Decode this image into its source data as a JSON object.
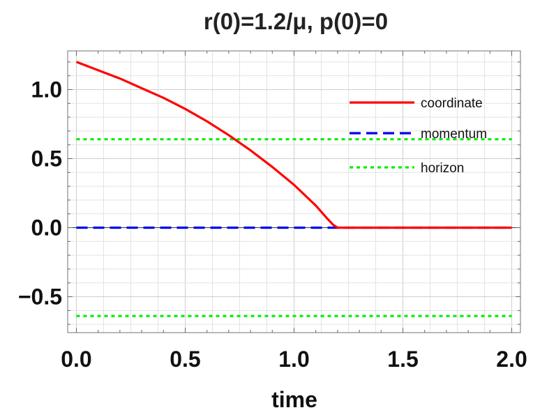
{
  "chart_data": {
    "type": "line",
    "title": "r(0)=1.2/μ, p(0)=0",
    "xlabel": "time",
    "ylabel": "",
    "xlim": [
      -0.04,
      2.04
    ],
    "ylim": [
      -0.76,
      1.28
    ],
    "grid": true,
    "legend_position": "top-right",
    "x_ticks": [
      {
        "value": 0.0,
        "label": "0.0"
      },
      {
        "value": 0.5,
        "label": "0.5"
      },
      {
        "value": 1.0,
        "label": "1.0"
      },
      {
        "value": 1.5,
        "label": "1.5"
      },
      {
        "value": 2.0,
        "label": "2.0"
      }
    ],
    "y_ticks": [
      {
        "value": 1.0,
        "label": "1.0"
      },
      {
        "value": 0.5,
        "label": "0.5"
      },
      {
        "value": 0.0,
        "label": "0.0"
      },
      {
        "value": -0.5,
        "label": "−0.5"
      }
    ],
    "series": [
      {
        "name": "coordinate",
        "color": "#ff0000",
        "dash": "solid",
        "x": [
          0.0,
          0.1,
          0.2,
          0.3,
          0.4,
          0.5,
          0.6,
          0.7,
          0.8,
          0.9,
          1.0,
          1.1,
          1.15,
          1.18,
          1.2,
          1.3,
          1.5,
          1.7,
          2.0
        ],
        "y": [
          1.2,
          1.14,
          1.08,
          1.01,
          0.94,
          0.86,
          0.77,
          0.67,
          0.56,
          0.44,
          0.31,
          0.16,
          0.07,
          0.02,
          0.0,
          0.0,
          0.0,
          0.0,
          0.0
        ]
      },
      {
        "name": "momentum",
        "color": "#0000ee",
        "dash": "dashed",
        "x": [
          0.0,
          2.0
        ],
        "y": [
          0.0,
          0.0
        ]
      },
      {
        "name": "horizon",
        "color": "#00ee00",
        "dash": "dotted",
        "x": [
          0.0,
          2.0
        ],
        "y": [
          0.64,
          0.64
        ]
      },
      {
        "name": "",
        "color": "#00ee00",
        "dash": "dotted",
        "x": [
          0.0,
          2.0
        ],
        "y": [
          -0.64,
          -0.64
        ]
      }
    ]
  }
}
